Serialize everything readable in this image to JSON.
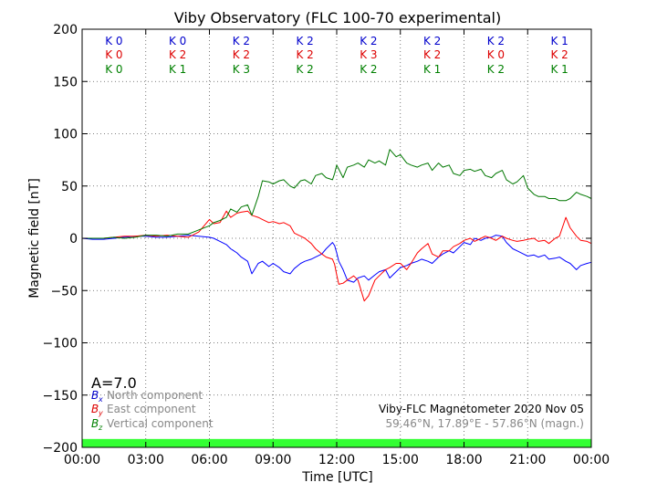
{
  "chart_data": {
    "type": "line",
    "title": "Viby Observatory (FLC 100-70 experimental)",
    "xlabel": "Time [UTC]",
    "ylabel": "Magnetic field [nT]",
    "xlim": [
      0,
      24
    ],
    "ylim": [
      -200,
      200
    ],
    "x_ticks": [
      {
        "value": 0,
        "label": "00:00"
      },
      {
        "value": 3,
        "label": "03:00"
      },
      {
        "value": 6,
        "label": "06:00"
      },
      {
        "value": 9,
        "label": "09:00"
      },
      {
        "value": 12,
        "label": "12:00"
      },
      {
        "value": 15,
        "label": "15:00"
      },
      {
        "value": 18,
        "label": "18:00"
      },
      {
        "value": 21,
        "label": "21:00"
      },
      {
        "value": 24,
        "label": "00:00"
      }
    ],
    "y_ticks": [
      {
        "value": 200,
        "label": "200"
      },
      {
        "value": 150,
        "label": "150"
      },
      {
        "value": 100,
        "label": "100"
      },
      {
        "value": 50,
        "label": "50"
      },
      {
        "value": 0,
        "label": "0"
      },
      {
        "value": -50,
        "label": "−50"
      },
      {
        "value": -100,
        "label": "−100"
      },
      {
        "value": -150,
        "label": "−150"
      },
      {
        "value": -200,
        "label": "−200"
      }
    ],
    "grid": true,
    "activity_bar": {
      "from": -200,
      "to": -192,
      "color": "#33ff33"
    },
    "k_index": {
      "intervals": [
        1.5,
        4.5,
        7.5,
        10.5,
        13.5,
        16.5,
        19.5,
        22.5
      ],
      "rows": [
        {
          "component": "x",
          "color": "#0000cc",
          "labels": [
            "K 0",
            "K 0",
            "K 2",
            "K 2",
            "K 2",
            "K 2",
            "K 2",
            "K 1"
          ]
        },
        {
          "component": "y",
          "color": "#dd0000",
          "labels": [
            "K 0",
            "K 2",
            "K 2",
            "K 2",
            "K 3",
            "K 2",
            "K 0",
            "K 2"
          ]
        },
        {
          "component": "z",
          "color": "#008000",
          "labels": [
            "K 0",
            "K 1",
            "K 3",
            "K 2",
            "K 2",
            "K 1",
            "K 2",
            "K 1"
          ]
        }
      ]
    },
    "a_index": "A=7.0",
    "legend": {
      "placement": "bottom-left",
      "entries": [
        {
          "symbol": "B",
          "sub": "x",
          "text": "North component",
          "color": "#0000cc"
        },
        {
          "symbol": "B",
          "sub": "y",
          "text": "East component",
          "color": "#dd0000"
        },
        {
          "symbol": "B",
          "sub": "z",
          "text": "Vertical component",
          "color": "#008000"
        }
      ]
    },
    "info": {
      "line1": "Viby-FLC Magnetometer 2020 Nov 05",
      "line2": "59.46°N, 17.89°E - 57.86°N (magn.)"
    },
    "series": [
      {
        "name": "North component",
        "color": "#0000ff",
        "x": [
          0,
          0.5,
          1,
          1.5,
          2,
          2.5,
          3,
          3.5,
          4,
          4.5,
          5,
          5.5,
          6,
          6.2,
          6.5,
          6.8,
          7,
          7.3,
          7.5,
          7.8,
          8,
          8.3,
          8.5,
          8.8,
          9,
          9.3,
          9.5,
          9.8,
          10,
          10.3,
          10.5,
          10.8,
          11,
          11.3,
          11.5,
          11.8,
          11.9,
          12,
          12.1,
          12.3,
          12.5,
          12.8,
          13,
          13.3,
          13.5,
          13.8,
          14,
          14.3,
          14.5,
          14.8,
          15,
          15.3,
          15.5,
          15.8,
          16,
          16.3,
          16.5,
          16.8,
          17,
          17.3,
          17.5,
          17.8,
          18,
          18.3,
          18.5,
          18.8,
          19,
          19.3,
          19.5,
          19.8,
          20,
          20.3,
          20.5,
          20.8,
          21,
          21.3,
          21.5,
          21.8,
          22,
          22.3,
          22.5,
          22.8,
          23,
          23.3,
          23.5,
          23.8,
          24
        ],
        "y": [
          0,
          -1,
          -1,
          0,
          1,
          2,
          2,
          1,
          1,
          2,
          3,
          2,
          1,
          0,
          -3,
          -6,
          -10,
          -14,
          -18,
          -22,
          -34,
          -24,
          -22,
          -27,
          -24,
          -28,
          -32,
          -34,
          -29,
          -24,
          -22,
          -20,
          -18,
          -15,
          -10,
          -4,
          -7,
          -14,
          -22,
          -30,
          -40,
          -42,
          -38,
          -36,
          -40,
          -35,
          -32,
          -30,
          -38,
          -32,
          -28,
          -26,
          -24,
          -22,
          -20,
          -22,
          -24,
          -18,
          -15,
          -12,
          -14,
          -8,
          -4,
          -6,
          0,
          -2,
          0,
          1,
          3,
          2,
          -4,
          -10,
          -12,
          -15,
          -17,
          -16,
          -18,
          -16,
          -20,
          -19,
          -18,
          -22,
          -24,
          -30,
          -26,
          -24,
          -23
        ]
      },
      {
        "name": "East component",
        "color": "#ff0000",
        "x": [
          0,
          0.5,
          1,
          1.5,
          2,
          2.5,
          3,
          3.5,
          4,
          4.5,
          5,
          5.5,
          6,
          6.2,
          6.5,
          6.8,
          7,
          7.3,
          7.5,
          7.8,
          8,
          8.3,
          8.5,
          8.8,
          9,
          9.3,
          9.5,
          9.8,
          10,
          10.3,
          10.5,
          10.8,
          11,
          11.3,
          11.5,
          11.8,
          11.9,
          12,
          12.1,
          12.3,
          12.5,
          12.8,
          13,
          13.3,
          13.5,
          13.8,
          14,
          14.3,
          14.5,
          14.8,
          15,
          15.3,
          15.5,
          15.8,
          16,
          16.3,
          16.5,
          16.8,
          17,
          17.3,
          17.5,
          17.8,
          18,
          18.3,
          18.5,
          18.8,
          19,
          19.3,
          19.5,
          19.8,
          20,
          20.3,
          20.5,
          20.8,
          21,
          21.3,
          21.5,
          21.8,
          22,
          22.3,
          22.5,
          22.8,
          23,
          23.3,
          23.5,
          23.8,
          24
        ],
        "y": [
          0,
          0,
          0,
          1,
          2,
          2,
          3,
          2,
          3,
          2,
          1,
          6,
          18,
          14,
          15,
          26,
          20,
          24,
          25,
          26,
          22,
          20,
          18,
          15,
          16,
          14,
          15,
          12,
          5,
          2,
          0,
          -5,
          -10,
          -15,
          -18,
          -20,
          -25,
          -35,
          -44,
          -43,
          -40,
          -36,
          -40,
          -60,
          -55,
          -40,
          -36,
          -30,
          -28,
          -24,
          -24,
          -30,
          -24,
          -14,
          -10,
          -5,
          -15,
          -18,
          -12,
          -12,
          -8,
          -5,
          -2,
          0,
          -3,
          0,
          2,
          0,
          -2,
          2,
          0,
          -2,
          -3,
          -2,
          -1,
          0,
          -3,
          -2,
          -5,
          0,
          2,
          20,
          10,
          2,
          -2,
          -3,
          -5
        ]
      },
      {
        "name": "Vertical component",
        "color": "#007700",
        "x": [
          0,
          0.5,
          1,
          1.5,
          2,
          2.5,
          3,
          3.5,
          4,
          4.5,
          5,
          5.5,
          6,
          6.2,
          6.5,
          6.8,
          7,
          7.3,
          7.5,
          7.8,
          8,
          8.3,
          8.5,
          8.8,
          9,
          9.3,
          9.5,
          9.8,
          10,
          10.3,
          10.5,
          10.8,
          11,
          11.3,
          11.5,
          11.8,
          11.9,
          12,
          12.1,
          12.3,
          12.5,
          12.8,
          13,
          13.3,
          13.5,
          13.8,
          14,
          14.3,
          14.5,
          14.8,
          15,
          15.3,
          15.5,
          15.8,
          16,
          16.3,
          16.5,
          16.8,
          17,
          17.3,
          17.5,
          17.8,
          18,
          18.3,
          18.5,
          18.8,
          19,
          19.3,
          19.5,
          19.8,
          20,
          20.3,
          20.5,
          20.8,
          21,
          21.3,
          21.5,
          21.8,
          22,
          22.3,
          22.5,
          22.8,
          23,
          23.3,
          23.5,
          23.8,
          24
        ],
        "y": [
          0,
          0,
          0,
          1,
          0,
          1,
          3,
          3,
          2,
          4,
          4,
          8,
          12,
          15,
          17,
          20,
          28,
          25,
          30,
          32,
          22,
          40,
          55,
          54,
          52,
          55,
          56,
          50,
          48,
          55,
          56,
          52,
          60,
          62,
          58,
          56,
          62,
          70,
          66,
          58,
          68,
          70,
          72,
          68,
          75,
          72,
          74,
          70,
          85,
          78,
          80,
          72,
          70,
          68,
          70,
          72,
          65,
          72,
          68,
          70,
          62,
          60,
          65,
          66,
          64,
          66,
          60,
          58,
          62,
          65,
          56,
          52,
          54,
          60,
          48,
          42,
          40,
          40,
          38,
          38,
          36,
          36,
          38,
          44,
          42,
          40,
          38
        ]
      }
    ]
  }
}
